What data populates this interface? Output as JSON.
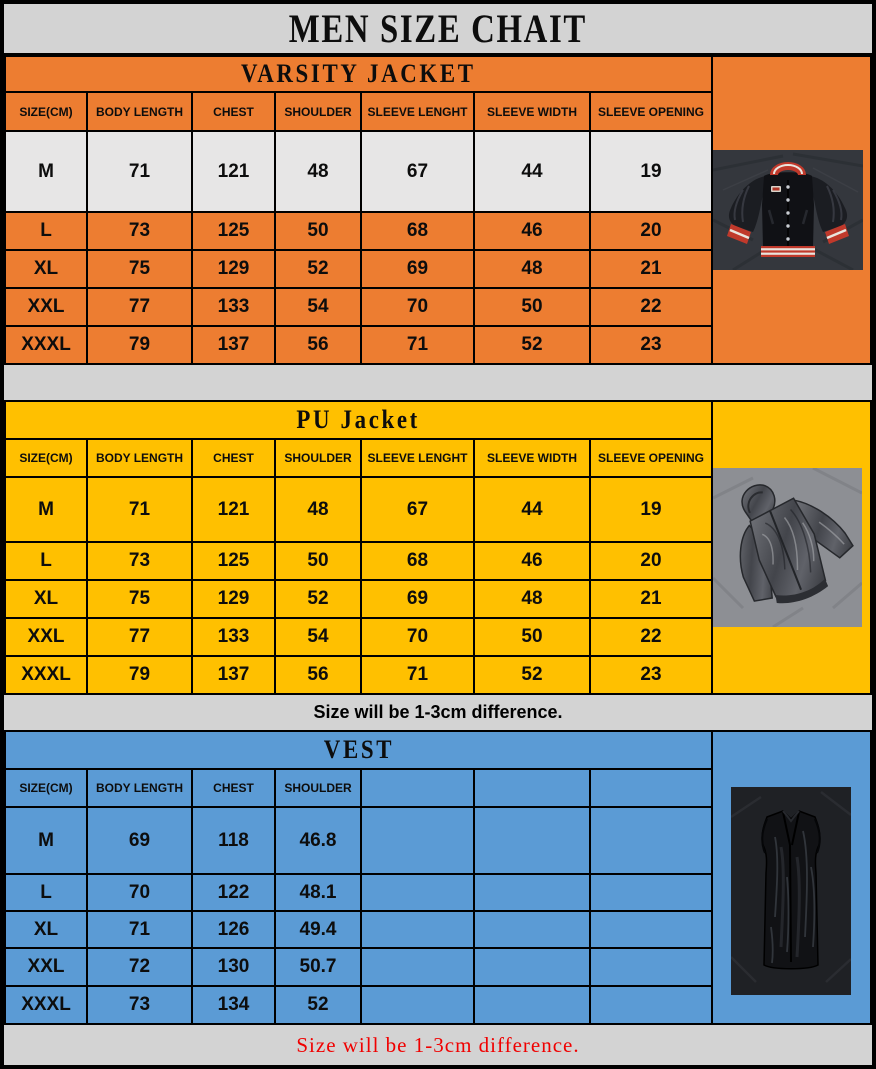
{
  "page_title": "MEN SIZE CHAIT",
  "notes": {
    "middle": "Size will be 1-3cm difference.",
    "bottom": "Size will be 1-3cm difference."
  },
  "colors": {
    "orange": "#ED7D31",
    "yellow": "#FFC000",
    "blue": "#5B9BD5",
    "page_gray": "#D3D3D3",
    "highlight_row": "#E7E6E6",
    "note_red": "#F00000",
    "border_black": "#000000"
  },
  "sections": [
    {
      "title": "VARSITY JACKET",
      "theme": "orange",
      "photo": "varsity-jacket-photo",
      "columns": [
        "SIZE(CM)",
        "BODY LENGTH",
        "CHEST",
        "SHOULDER",
        "SLEEVE LENGHT",
        "SLEEVE WIDTH",
        "SLEEVE OPENING"
      ],
      "rows": [
        {
          "size": "M",
          "highlight": true,
          "values": [
            "71",
            "121",
            "48",
            "67",
            "44",
            "19"
          ]
        },
        {
          "size": "L",
          "values": [
            "73",
            "125",
            "50",
            "68",
            "46",
            "20"
          ]
        },
        {
          "size": "XL",
          "values": [
            "75",
            "129",
            "52",
            "69",
            "48",
            "21"
          ]
        },
        {
          "size": "XXL",
          "values": [
            "77",
            "133",
            "54",
            "70",
            "50",
            "22"
          ]
        },
        {
          "size": "XXXL",
          "values": [
            "79",
            "137",
            "56",
            "71",
            "52",
            "23"
          ]
        }
      ]
    },
    {
      "title": "PU Jacket",
      "theme": "yellow",
      "photo": "pu-jacket-photo",
      "columns": [
        "SIZE(CM)",
        "BODY LENGTH",
        "CHEST",
        "SHOULDER",
        "SLEEVE LENGHT",
        "SLEEVE WIDTH",
        "SLEEVE OPENING"
      ],
      "rows": [
        {
          "size": "M",
          "values": [
            "71",
            "121",
            "48",
            "67",
            "44",
            "19"
          ]
        },
        {
          "size": "L",
          "values": [
            "73",
            "125",
            "50",
            "68",
            "46",
            "20"
          ]
        },
        {
          "size": "XL",
          "values": [
            "75",
            "129",
            "52",
            "69",
            "48",
            "21"
          ]
        },
        {
          "size": "XXL",
          "values": [
            "77",
            "133",
            "54",
            "70",
            "50",
            "22"
          ]
        },
        {
          "size": "XXXL",
          "values": [
            "79",
            "137",
            "56",
            "71",
            "52",
            "23"
          ]
        }
      ]
    },
    {
      "title": "VEST",
      "theme": "blue",
      "photo": "vest-photo",
      "columns": [
        "SIZE(CM)",
        "BODY LENGTH",
        "CHEST",
        "SHOULDER",
        "",
        "",
        ""
      ],
      "rows": [
        {
          "size": "M",
          "values": [
            "69",
            "118",
            "46.8",
            "",
            "",
            ""
          ]
        },
        {
          "size": "L",
          "values": [
            "70",
            "122",
            "48.1",
            "",
            "",
            ""
          ]
        },
        {
          "size": "XL",
          "values": [
            "71",
            "126",
            "49.4",
            "",
            "",
            ""
          ]
        },
        {
          "size": "XXL",
          "values": [
            "72",
            "130",
            "50.7",
            "",
            "",
            ""
          ]
        },
        {
          "size": "XXXL",
          "values": [
            "73",
            "134",
            "52",
            "",
            "",
            ""
          ]
        }
      ]
    }
  ]
}
